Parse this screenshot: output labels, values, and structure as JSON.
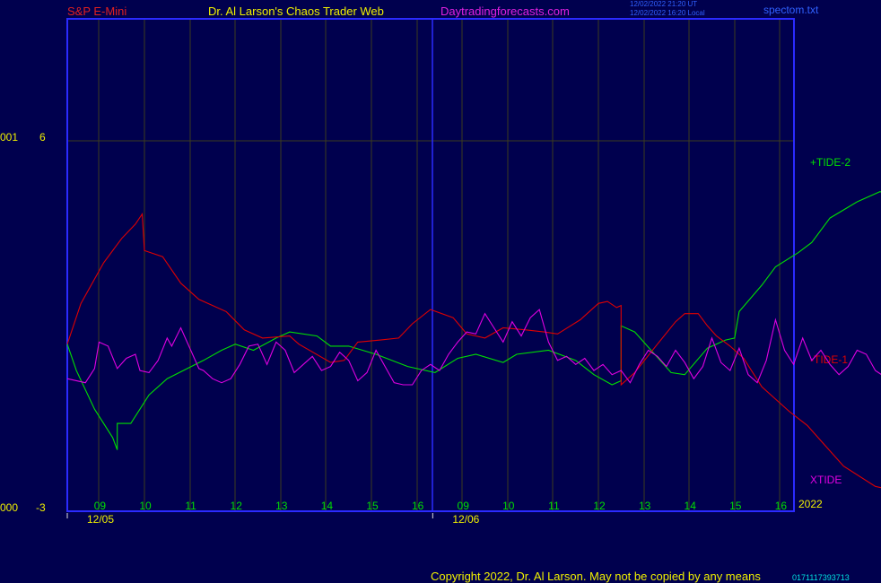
{
  "header": {
    "symbol": "S&P E-Mini",
    "title": "Dr. Al Larson's Chaos Trader Web",
    "site": "Daytradingforecasts.com",
    "time_utc": "12/02/2022 21:20 UT",
    "time_local": "12/02/2022 16:20 Local",
    "file": "spectom.txt"
  },
  "left_labels": {
    "top_code": "001",
    "top_value": "6",
    "bottom_code": "000",
    "bottom_value": "-3"
  },
  "footer": {
    "copyright": "Copyright 2022, Dr. Al Larson. May not be copied by any means",
    "code": "0171117393713"
  },
  "colors": {
    "background": "#00004e",
    "frame": "#2b2bff",
    "grid": "#3c3c1e",
    "tide_plus": "#00e000",
    "tide_minus": "#e00000",
    "xtide": "#e000e0",
    "header_symbol": "#e02020",
    "header_title": "#f0f000",
    "header_site": "#e020e0",
    "header_small": "#3060ff",
    "axis_text": "#00e000",
    "date_text": "#f0f000"
  },
  "chart_data": {
    "type": "line",
    "x_ticks": [
      "09",
      "10",
      "11",
      "12",
      "13",
      "14",
      "15",
      "16",
      "09",
      "10",
      "11",
      "12",
      "13",
      "14",
      "15",
      "16"
    ],
    "date_labels": [
      "12/05",
      "12/06"
    ],
    "year_label": "2022",
    "ylim": [
      -3,
      6
    ],
    "series": [
      {
        "name": "+TIDE-2",
        "color": "#00e000",
        "points": [
          [
            0,
            1.0
          ],
          [
            0.2,
            0.35
          ],
          [
            0.6,
            -0.6
          ],
          [
            1.0,
            -1.3
          ],
          [
            1.1,
            -1.6
          ],
          [
            1.1,
            -0.95
          ],
          [
            1.4,
            -0.95
          ],
          [
            1.8,
            -0.25
          ],
          [
            2.2,
            0.15
          ],
          [
            3.0,
            0.6
          ],
          [
            3.4,
            0.85
          ],
          [
            3.7,
            1.0
          ],
          [
            4.1,
            0.85
          ],
          [
            4.6,
            1.15
          ],
          [
            4.9,
            1.3
          ],
          [
            5.5,
            1.2
          ],
          [
            5.8,
            0.95
          ],
          [
            6.2,
            0.95
          ],
          [
            6.8,
            0.75
          ],
          [
            7.5,
            0.45
          ],
          [
            8.1,
            0.3
          ],
          [
            8.6,
            0.65
          ],
          [
            9.0,
            0.75
          ],
          [
            9.6,
            0.55
          ],
          [
            9.9,
            0.75
          ],
          [
            10.6,
            0.85
          ],
          [
            11.2,
            0.6
          ],
          [
            11.6,
            0.25
          ],
          [
            12.0,
            0.0
          ],
          [
            12.2,
            0.1
          ],
          [
            12.2,
            1.45
          ],
          [
            12.5,
            1.3
          ],
          [
            12.9,
            0.8
          ],
          [
            13.3,
            0.3
          ],
          [
            13.6,
            0.25
          ],
          [
            14.1,
            0.9
          ],
          [
            14.5,
            1.1
          ],
          [
            14.7,
            1.15
          ],
          [
            14.8,
            1.8
          ],
          [
            15.3,
            2.45
          ],
          [
            15.6,
            2.9
          ],
          [
            16.1,
            3.25
          ],
          [
            16.4,
            3.5
          ],
          [
            16.8,
            4.1
          ],
          [
            17.4,
            4.5
          ],
          [
            17.9,
            4.75
          ],
          [
            18.5,
            4.6
          ],
          [
            18.9,
            4.3
          ],
          [
            19.2,
            3.7
          ],
          [
            19.6,
            3.05
          ],
          [
            20.0,
            2.5
          ],
          [
            20.5,
            2.4
          ],
          [
            21.0,
            2.2
          ],
          [
            21.7,
            2.45
          ],
          [
            22.2,
            2.9
          ],
          [
            22.6,
            2.75
          ],
          [
            23.1,
            2.95
          ],
          [
            23.5,
            3.0
          ],
          [
            23.8,
            3.0
          ]
        ]
      },
      {
        "name": "-TIDE-1",
        "color": "#e00000",
        "points": [
          [
            0,
            1.0
          ],
          [
            0.3,
            2.0
          ],
          [
            0.8,
            3.0
          ],
          [
            1.2,
            3.6
          ],
          [
            1.5,
            3.95
          ],
          [
            1.65,
            4.2
          ],
          [
            1.7,
            3.3
          ],
          [
            2.1,
            3.15
          ],
          [
            2.5,
            2.5
          ],
          [
            2.9,
            2.1
          ],
          [
            3.5,
            1.8
          ],
          [
            3.9,
            1.35
          ],
          [
            4.3,
            1.15
          ],
          [
            4.9,
            1.2
          ],
          [
            5.1,
            1.0
          ],
          [
            5.8,
            0.55
          ],
          [
            6.1,
            0.6
          ],
          [
            6.4,
            1.05
          ],
          [
            6.9,
            1.1
          ],
          [
            7.3,
            1.15
          ],
          [
            7.6,
            1.5
          ],
          [
            8.0,
            1.85
          ],
          [
            8.5,
            1.65
          ],
          [
            8.8,
            1.25
          ],
          [
            9.2,
            1.15
          ],
          [
            9.6,
            1.4
          ],
          [
            10.1,
            1.35
          ],
          [
            10.5,
            1.3
          ],
          [
            10.8,
            1.25
          ],
          [
            11.3,
            1.6
          ],
          [
            11.7,
            2.0
          ],
          [
            11.9,
            2.05
          ],
          [
            12.1,
            1.9
          ],
          [
            12.2,
            1.95
          ],
          [
            12.2,
            0.0
          ],
          [
            12.5,
            0.3
          ],
          [
            13.0,
            1.0
          ],
          [
            13.4,
            1.55
          ],
          [
            13.6,
            1.75
          ],
          [
            13.9,
            1.75
          ],
          [
            14.1,
            1.45
          ],
          [
            14.3,
            1.2
          ],
          [
            14.6,
            0.95
          ],
          [
            14.9,
            0.65
          ],
          [
            15.3,
            -0.05
          ],
          [
            15.9,
            -0.65
          ],
          [
            16.3,
            -1.0
          ],
          [
            16.7,
            -1.5
          ],
          [
            17.1,
            -2.0
          ],
          [
            17.8,
            -2.5
          ],
          [
            18.2,
            -2.6
          ],
          [
            18.8,
            -2.45
          ],
          [
            19.3,
            -2.05
          ],
          [
            19.7,
            -1.25
          ],
          [
            20.2,
            -0.4
          ],
          [
            20.6,
            -0.15
          ],
          [
            20.9,
            -0.15
          ],
          [
            21.6,
            0.15
          ],
          [
            22.1,
            -0.05
          ],
          [
            22.5,
            -0.55
          ],
          [
            22.8,
            -0.8
          ],
          [
            23.2,
            -0.65
          ],
          [
            23.6,
            -0.8
          ],
          [
            23.8,
            -0.8
          ]
        ]
      },
      {
        "name": "XTIDE",
        "color": "#e000e0",
        "points": [
          [
            0,
            0.15
          ],
          [
            0.4,
            0.05
          ],
          [
            0.6,
            0.4
          ],
          [
            0.7,
            1.05
          ],
          [
            0.9,
            0.95
          ],
          [
            1.1,
            0.4
          ],
          [
            1.3,
            0.65
          ],
          [
            1.5,
            0.75
          ],
          [
            1.6,
            0.35
          ],
          [
            1.8,
            0.3
          ],
          [
            2.0,
            0.6
          ],
          [
            2.2,
            1.15
          ],
          [
            2.3,
            0.95
          ],
          [
            2.5,
            1.4
          ],
          [
            2.7,
            0.9
          ],
          [
            2.9,
            0.4
          ],
          [
            3.0,
            0.35
          ],
          [
            3.2,
            0.15
          ],
          [
            3.4,
            0.05
          ],
          [
            3.6,
            0.15
          ],
          [
            3.8,
            0.5
          ],
          [
            4.0,
            0.95
          ],
          [
            4.2,
            1.0
          ],
          [
            4.4,
            0.5
          ],
          [
            4.6,
            1.05
          ],
          [
            4.8,
            0.85
          ],
          [
            5.0,
            0.3
          ],
          [
            5.2,
            0.5
          ],
          [
            5.4,
            0.7
          ],
          [
            5.6,
            0.35
          ],
          [
            5.8,
            0.45
          ],
          [
            6.0,
            0.8
          ],
          [
            6.2,
            0.6
          ],
          [
            6.4,
            0.1
          ],
          [
            6.6,
            0.3
          ],
          [
            6.8,
            0.85
          ],
          [
            7.0,
            0.45
          ],
          [
            7.2,
            0.05
          ],
          [
            7.4,
            0.0
          ],
          [
            7.6,
            0.0
          ],
          [
            7.8,
            0.35
          ],
          [
            8.0,
            0.5
          ],
          [
            8.2,
            0.35
          ],
          [
            8.4,
            0.75
          ],
          [
            8.6,
            1.05
          ],
          [
            8.8,
            1.3
          ],
          [
            9.0,
            1.25
          ],
          [
            9.2,
            1.75
          ],
          [
            9.4,
            1.4
          ],
          [
            9.6,
            1.05
          ],
          [
            9.8,
            1.55
          ],
          [
            10.0,
            1.2
          ],
          [
            10.2,
            1.65
          ],
          [
            10.4,
            1.85
          ],
          [
            10.6,
            1.05
          ],
          [
            10.8,
            0.6
          ],
          [
            11.0,
            0.7
          ],
          [
            11.2,
            0.5
          ],
          [
            11.4,
            0.65
          ],
          [
            11.6,
            0.35
          ],
          [
            11.8,
            0.5
          ],
          [
            12.0,
            0.25
          ],
          [
            12.2,
            0.35
          ],
          [
            12.4,
            0.05
          ],
          [
            12.6,
            0.5
          ],
          [
            12.8,
            0.85
          ],
          [
            13.0,
            0.7
          ],
          [
            13.2,
            0.45
          ],
          [
            13.4,
            0.85
          ],
          [
            13.6,
            0.55
          ],
          [
            13.8,
            0.15
          ],
          [
            14.0,
            0.45
          ],
          [
            14.2,
            1.15
          ],
          [
            14.4,
            0.55
          ],
          [
            14.6,
            0.35
          ],
          [
            14.8,
            0.9
          ],
          [
            15.0,
            0.25
          ],
          [
            15.2,
            0.05
          ],
          [
            15.4,
            0.6
          ],
          [
            15.6,
            1.6
          ],
          [
            15.8,
            0.85
          ],
          [
            16.0,
            0.5
          ],
          [
            16.2,
            1.15
          ],
          [
            16.4,
            0.6
          ],
          [
            16.6,
            0.85
          ],
          [
            16.8,
            0.5
          ],
          [
            17.0,
            0.25
          ],
          [
            17.2,
            0.45
          ],
          [
            17.4,
            0.85
          ],
          [
            17.6,
            0.75
          ],
          [
            17.8,
            0.35
          ],
          [
            18.0,
            0.2
          ],
          [
            18.2,
            0.95
          ],
          [
            18.4,
            0.45
          ],
          [
            18.6,
            0.2
          ],
          [
            18.8,
            0.1
          ],
          [
            19.0,
            0.0
          ],
          [
            19.2,
            0.0
          ],
          [
            19.4,
            0.1
          ],
          [
            19.6,
            0.3
          ],
          [
            19.8,
            0.6
          ],
          [
            20.0,
            0.25
          ],
          [
            20.2,
            0.4
          ],
          [
            20.4,
            0.6
          ],
          [
            20.6,
            0.75
          ],
          [
            20.8,
            1.35
          ],
          [
            21.0,
            1.15
          ],
          [
            21.2,
            1.45
          ],
          [
            21.4,
            0.9
          ],
          [
            21.6,
            1.05
          ],
          [
            21.8,
            1.2
          ],
          [
            22.0,
            1.6
          ],
          [
            22.2,
            1.3
          ],
          [
            22.4,
            1.05
          ],
          [
            22.6,
            1.35
          ],
          [
            22.8,
            1.7
          ],
          [
            23.0,
            1.05
          ],
          [
            23.2,
            0.75
          ],
          [
            23.4,
            1.15
          ],
          [
            23.6,
            0.8
          ],
          [
            23.8,
            0.75
          ]
        ]
      }
    ]
  }
}
